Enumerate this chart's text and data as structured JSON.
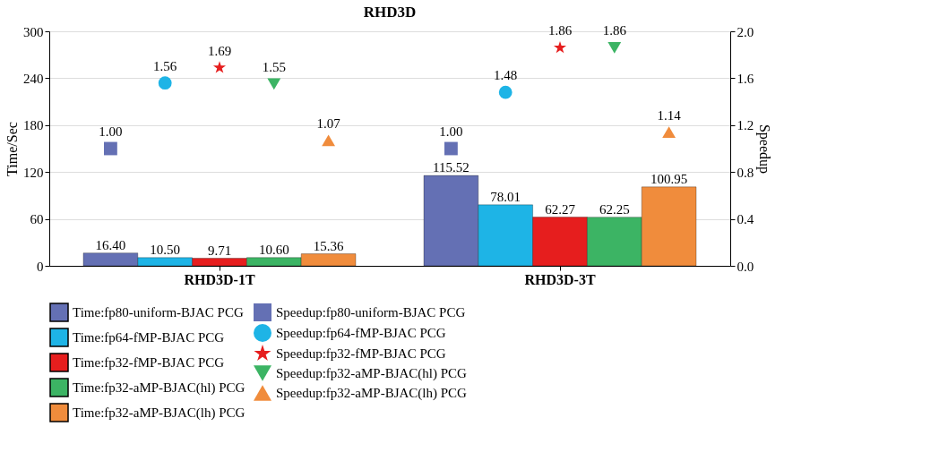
{
  "chart_data": {
    "type": "bar",
    "title": "RHD3D",
    "ylabel": "Time/Sec",
    "y2label": "Speedup",
    "categories": [
      "RHD3D-1T",
      "RHD3D-3T"
    ],
    "series": [
      {
        "name": "Time:fp80-uniform-BJAC PCG",
        "color": "#6470b4",
        "values": [
          16.4,
          115.52
        ],
        "value_labels": [
          "16.40",
          "115.52"
        ]
      },
      {
        "name": "Time:fp64-fMP-BJAC PCG",
        "color": "#1eb4e6",
        "values": [
          10.5,
          78.01
        ],
        "value_labels": [
          "10.50",
          "78.01"
        ]
      },
      {
        "name": "Time:fp32-fMP-BJAC PCG",
        "color": "#e61e1e",
        "values": [
          9.71,
          62.27
        ],
        "value_labels": [
          "9.71",
          "62.27"
        ]
      },
      {
        "name": "Time:fp32-aMP-BJAC(hl) PCG",
        "color": "#3cb464",
        "values": [
          10.6,
          62.25
        ],
        "value_labels": [
          "10.60",
          "62.25"
        ]
      },
      {
        "name": "Time:fp32-aMP-BJAC(lh) PCG",
        "color": "#f08c3c",
        "values": [
          15.36,
          100.95
        ],
        "value_labels": [
          "15.36",
          "100.95"
        ]
      },
      {
        "name": "Speedup:fp80-uniform-BJAC PCG",
        "type": "scatter",
        "axis": "y2",
        "marker": "square",
        "color": "#6470b4",
        "values": [
          1.0,
          1.0
        ],
        "value_labels": [
          "1.00",
          "1.00"
        ]
      },
      {
        "name": "Speedup:fp64-fMP-BJAC PCG",
        "type": "scatter",
        "axis": "y2",
        "marker": "circle",
        "color": "#1eb4e6",
        "values": [
          1.56,
          1.48
        ],
        "value_labels": [
          "1.56",
          "1.48"
        ]
      },
      {
        "name": "Speedup:fp32-fMP-BJAC PCG",
        "type": "scatter",
        "axis": "y2",
        "marker": "star",
        "color": "#e61e1e",
        "values": [
          1.69,
          1.86
        ],
        "value_labels": [
          "1.69",
          "1.86"
        ]
      },
      {
        "name": "Speedup:fp32-aMP-BJAC(hl) PCG",
        "type": "scatter",
        "axis": "y2",
        "marker": "triangle-down",
        "color": "#3cb464",
        "values": [
          1.55,
          1.86
        ],
        "value_labels": [
          "1.55",
          "1.86"
        ]
      },
      {
        "name": "Speedup:fp32-aMP-BJAC(lh) PCG",
        "type": "scatter",
        "axis": "y2",
        "marker": "triangle",
        "color": "#f08c3c",
        "values": [
          1.07,
          1.14
        ],
        "value_labels": [
          "1.07",
          "1.14"
        ]
      }
    ],
    "ylim": [
      0,
      300
    ],
    "yticks": [
      0,
      60,
      120,
      180,
      240,
      300
    ],
    "y2lim": [
      0,
      2.0
    ],
    "y2ticks": [
      {
        "value": 0,
        "label": "0.0"
      },
      {
        "value": 0.4,
        "label": "0.4"
      },
      {
        "value": 0.8,
        "label": "0.8"
      },
      {
        "value": 1.2,
        "label": "1.2"
      },
      {
        "value": 1.6,
        "label": "1.6"
      },
      {
        "value": 2.0,
        "label": "2.0"
      }
    ],
    "grid": "y",
    "legend": "bottom"
  }
}
